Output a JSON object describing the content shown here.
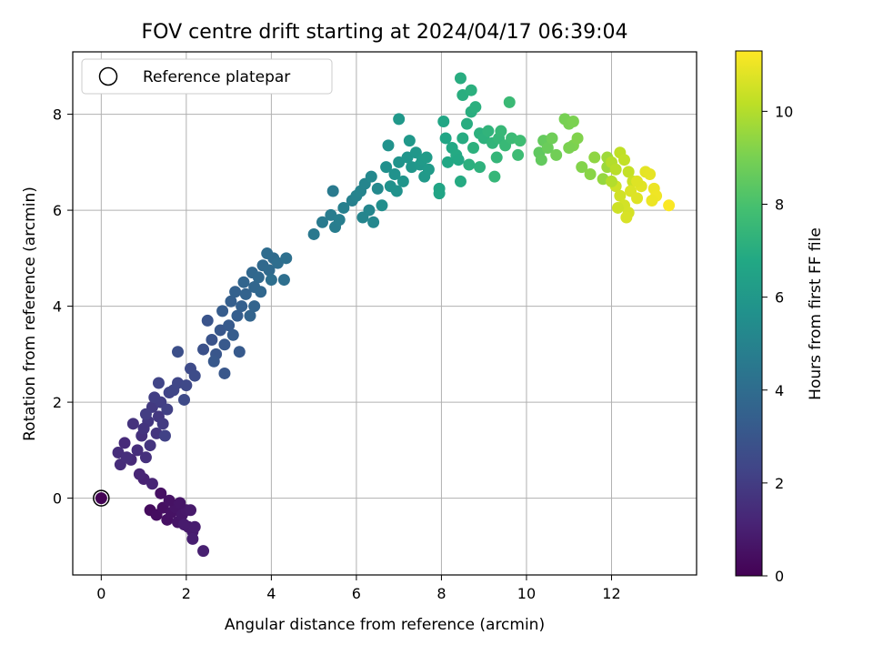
{
  "chart_data": {
    "type": "scatter",
    "title": "FOV centre drift starting at 2024/04/17 06:39:04",
    "xlabel": "Angular distance from reference (arcmin)",
    "ylabel": "Rotation from reference (arcmin)",
    "xlim": [
      -0.67,
      14.0
    ],
    "ylim": [
      -1.6,
      9.3
    ],
    "xticks": [
      0,
      2,
      4,
      6,
      8,
      10,
      12
    ],
    "yticks": [
      0,
      2,
      4,
      6,
      8
    ],
    "xtick_labels": [
      "0",
      "2",
      "4",
      "6",
      "8",
      "10",
      "12"
    ],
    "ytick_labels": [
      "0",
      "2",
      "4",
      "6",
      "8"
    ],
    "grid": true,
    "legend": {
      "position": "top-left",
      "entries": [
        {
          "label": "Reference platepar",
          "marker": "open-circle"
        }
      ]
    },
    "colorbar": {
      "label": "Hours from first FF file",
      "colormap": "viridis",
      "range": [
        0,
        11.3
      ],
      "ticks": [
        0,
        2,
        4,
        6,
        8,
        10
      ],
      "tick_labels": [
        "0",
        "2",
        "4",
        "6",
        "8",
        "10"
      ]
    },
    "reference_point": {
      "x": 0,
      "y": 0
    },
    "series": [
      {
        "color_by": "hours",
        "points": [
          {
            "x": 0.0,
            "y": 0.0,
            "c": 0.05
          },
          {
            "x": 1.15,
            "y": -0.25,
            "c": 0.35
          },
          {
            "x": 1.3,
            "y": -0.35,
            "c": 0.4
          },
          {
            "x": 1.45,
            "y": -0.2,
            "c": 0.45
          },
          {
            "x": 1.55,
            "y": -0.45,
            "c": 0.5
          },
          {
            "x": 1.65,
            "y": -0.3,
            "c": 0.55
          },
          {
            "x": 1.75,
            "y": -0.2,
            "c": 0.6
          },
          {
            "x": 1.8,
            "y": -0.5,
            "c": 0.65
          },
          {
            "x": 1.9,
            "y": -0.35,
            "c": 0.7
          },
          {
            "x": 2.0,
            "y": -0.25,
            "c": 0.75
          },
          {
            "x": 2.05,
            "y": -0.6,
            "c": 0.8
          },
          {
            "x": 2.15,
            "y": -0.7,
            "c": 0.85
          },
          {
            "x": 2.2,
            "y": -0.6,
            "c": 0.9
          },
          {
            "x": 2.15,
            "y": -0.85,
            "c": 0.95
          },
          {
            "x": 2.4,
            "y": -1.1,
            "c": 1.0
          },
          {
            "x": 1.4,
            "y": 0.1,
            "c": 0.5
          },
          {
            "x": 1.6,
            "y": -0.05,
            "c": 0.55
          },
          {
            "x": 1.85,
            "y": -0.1,
            "c": 0.65
          },
          {
            "x": 2.1,
            "y": -0.25,
            "c": 0.8
          },
          {
            "x": 1.95,
            "y": -0.55,
            "c": 0.85
          },
          {
            "x": 1.0,
            "y": 0.4,
            "c": 1.1
          },
          {
            "x": 1.2,
            "y": 0.3,
            "c": 1.15
          },
          {
            "x": 0.9,
            "y": 0.5,
            "c": 1.2
          },
          {
            "x": 0.7,
            "y": 0.8,
            "c": 1.3
          },
          {
            "x": 0.55,
            "y": 1.15,
            "c": 1.35
          },
          {
            "x": 0.45,
            "y": 0.7,
            "c": 1.4
          },
          {
            "x": 0.85,
            "y": 1.0,
            "c": 1.5
          },
          {
            "x": 1.05,
            "y": 0.85,
            "c": 1.55
          },
          {
            "x": 0.95,
            "y": 1.3,
            "c": 1.6
          },
          {
            "x": 0.75,
            "y": 1.55,
            "c": 1.65
          },
          {
            "x": 1.15,
            "y": 1.1,
            "c": 1.7
          },
          {
            "x": 1.3,
            "y": 1.35,
            "c": 1.75
          },
          {
            "x": 1.1,
            "y": 1.6,
            "c": 1.8
          },
          {
            "x": 1.35,
            "y": 1.7,
            "c": 1.85
          },
          {
            "x": 1.2,
            "y": 1.9,
            "c": 1.9
          },
          {
            "x": 1.45,
            "y": 1.55,
            "c": 1.95
          },
          {
            "x": 1.05,
            "y": 1.75,
            "c": 2.0
          },
          {
            "x": 1.4,
            "y": 2.0,
            "c": 2.05
          },
          {
            "x": 1.25,
            "y": 2.1,
            "c": 2.1
          },
          {
            "x": 1.55,
            "y": 1.85,
            "c": 2.15
          },
          {
            "x": 1.5,
            "y": 1.3,
            "c": 2.2
          },
          {
            "x": 1.6,
            "y": 2.2,
            "c": 2.25
          },
          {
            "x": 1.35,
            "y": 2.4,
            "c": 2.3
          },
          {
            "x": 1.7,
            "y": 2.25,
            "c": 2.35
          },
          {
            "x": 1.8,
            "y": 2.4,
            "c": 2.4
          },
          {
            "x": 2.0,
            "y": 2.35,
            "c": 2.45
          },
          {
            "x": 1.95,
            "y": 2.05,
            "c": 2.5
          },
          {
            "x": 2.1,
            "y": 2.7,
            "c": 2.55
          },
          {
            "x": 2.2,
            "y": 2.55,
            "c": 2.6
          },
          {
            "x": 1.8,
            "y": 3.05,
            "c": 2.7
          },
          {
            "x": 0.4,
            "y": 0.95,
            "c": 1.45
          },
          {
            "x": 0.6,
            "y": 0.85,
            "c": 1.5
          },
          {
            "x": 1.0,
            "y": 1.45,
            "c": 1.7
          },
          {
            "x": 2.4,
            "y": 3.1,
            "c": 2.8
          },
          {
            "x": 2.6,
            "y": 3.3,
            "c": 2.9
          },
          {
            "x": 2.5,
            "y": 3.7,
            "c": 2.95
          },
          {
            "x": 2.7,
            "y": 3.0,
            "c": 3.0
          },
          {
            "x": 2.8,
            "y": 3.5,
            "c": 3.05
          },
          {
            "x": 2.65,
            "y": 2.85,
            "c": 3.1
          },
          {
            "x": 2.9,
            "y": 3.2,
            "c": 3.15
          },
          {
            "x": 3.0,
            "y": 3.6,
            "c": 3.2
          },
          {
            "x": 2.85,
            "y": 3.9,
            "c": 3.25
          },
          {
            "x": 3.1,
            "y": 3.4,
            "c": 3.3
          },
          {
            "x": 3.2,
            "y": 3.8,
            "c": 3.35
          },
          {
            "x": 3.05,
            "y": 4.1,
            "c": 3.4
          },
          {
            "x": 3.3,
            "y": 4.0,
            "c": 3.45
          },
          {
            "x": 3.15,
            "y": 4.3,
            "c": 3.5
          },
          {
            "x": 3.4,
            "y": 4.25,
            "c": 3.55
          },
          {
            "x": 3.5,
            "y": 3.8,
            "c": 3.6
          },
          {
            "x": 3.35,
            "y": 4.5,
            "c": 3.65
          },
          {
            "x": 3.6,
            "y": 4.4,
            "c": 3.7
          },
          {
            "x": 3.55,
            "y": 4.7,
            "c": 3.75
          },
          {
            "x": 3.7,
            "y": 4.6,
            "c": 3.8
          },
          {
            "x": 3.8,
            "y": 4.85,
            "c": 3.85
          },
          {
            "x": 3.95,
            "y": 4.75,
            "c": 3.9
          },
          {
            "x": 4.05,
            "y": 5.0,
            "c": 3.95
          },
          {
            "x": 3.9,
            "y": 5.1,
            "c": 4.0
          },
          {
            "x": 4.15,
            "y": 4.9,
            "c": 4.05
          },
          {
            "x": 4.3,
            "y": 4.55,
            "c": 4.1
          },
          {
            "x": 4.35,
            "y": 5.0,
            "c": 4.15
          },
          {
            "x": 4.0,
            "y": 4.55,
            "c": 4.1
          },
          {
            "x": 2.9,
            "y": 2.6,
            "c": 3.05
          },
          {
            "x": 3.25,
            "y": 3.05,
            "c": 3.2
          },
          {
            "x": 3.6,
            "y": 4.0,
            "c": 3.6
          },
          {
            "x": 3.75,
            "y": 4.3,
            "c": 3.75
          },
          {
            "x": 5.0,
            "y": 5.5,
            "c": 4.5
          },
          {
            "x": 5.2,
            "y": 5.75,
            "c": 4.6
          },
          {
            "x": 5.4,
            "y": 5.9,
            "c": 4.7
          },
          {
            "x": 5.5,
            "y": 5.65,
            "c": 4.75
          },
          {
            "x": 5.6,
            "y": 5.8,
            "c": 4.8
          },
          {
            "x": 5.7,
            "y": 6.05,
            "c": 4.85
          },
          {
            "x": 5.9,
            "y": 6.2,
            "c": 4.9
          },
          {
            "x": 5.45,
            "y": 6.4,
            "c": 4.6
          },
          {
            "x": 6.0,
            "y": 6.3,
            "c": 5.0
          },
          {
            "x": 6.1,
            "y": 6.4,
            "c": 5.05
          },
          {
            "x": 6.2,
            "y": 6.55,
            "c": 5.1
          },
          {
            "x": 6.3,
            "y": 6.0,
            "c": 5.15
          },
          {
            "x": 6.4,
            "y": 5.75,
            "c": 5.2
          },
          {
            "x": 6.35,
            "y": 6.7,
            "c": 5.25
          },
          {
            "x": 6.15,
            "y": 5.85,
            "c": 5.1
          },
          {
            "x": 6.5,
            "y": 6.45,
            "c": 5.3
          },
          {
            "x": 6.6,
            "y": 6.1,
            "c": 5.5
          },
          {
            "x": 6.7,
            "y": 6.9,
            "c": 5.6
          },
          {
            "x": 6.8,
            "y": 6.5,
            "c": 5.65
          },
          {
            "x": 6.9,
            "y": 6.75,
            "c": 5.7
          },
          {
            "x": 7.0,
            "y": 7.0,
            "c": 5.75
          },
          {
            "x": 7.1,
            "y": 6.6,
            "c": 5.8
          },
          {
            "x": 7.2,
            "y": 7.1,
            "c": 5.85
          },
          {
            "x": 7.3,
            "y": 6.9,
            "c": 5.9
          },
          {
            "x": 7.4,
            "y": 7.2,
            "c": 5.95
          },
          {
            "x": 7.5,
            "y": 6.95,
            "c": 6.0
          },
          {
            "x": 7.6,
            "y": 6.7,
            "c": 6.05
          },
          {
            "x": 7.7,
            "y": 6.85,
            "c": 6.1
          },
          {
            "x": 7.25,
            "y": 7.45,
            "c": 6.0
          },
          {
            "x": 6.75,
            "y": 7.35,
            "c": 5.7
          },
          {
            "x": 7.0,
            "y": 7.9,
            "c": 6.0
          },
          {
            "x": 7.55,
            "y": 7.05,
            "c": 6.1
          },
          {
            "x": 6.95,
            "y": 6.4,
            "c": 5.7
          },
          {
            "x": 7.65,
            "y": 7.1,
            "c": 6.15
          },
          {
            "x": 7.95,
            "y": 6.45,
            "c": 6.6
          },
          {
            "x": 8.05,
            "y": 7.85,
            "c": 6.7
          },
          {
            "x": 8.15,
            "y": 7.0,
            "c": 6.75
          },
          {
            "x": 8.25,
            "y": 7.3,
            "c": 6.8
          },
          {
            "x": 8.35,
            "y": 7.15,
            "c": 6.85
          },
          {
            "x": 8.45,
            "y": 6.6,
            "c": 6.9
          },
          {
            "x": 8.5,
            "y": 7.5,
            "c": 6.95
          },
          {
            "x": 8.6,
            "y": 7.8,
            "c": 7.0
          },
          {
            "x": 8.7,
            "y": 8.05,
            "c": 7.05
          },
          {
            "x": 8.8,
            "y": 8.15,
            "c": 7.1
          },
          {
            "x": 8.9,
            "y": 7.6,
            "c": 7.15
          },
          {
            "x": 9.0,
            "y": 7.5,
            "c": 7.2
          },
          {
            "x": 8.45,
            "y": 8.75,
            "c": 7.0
          },
          {
            "x": 8.5,
            "y": 8.4,
            "c": 7.05
          },
          {
            "x": 8.7,
            "y": 8.5,
            "c": 7.1
          },
          {
            "x": 8.75,
            "y": 7.3,
            "c": 7.15
          },
          {
            "x": 8.65,
            "y": 6.95,
            "c": 7.1
          },
          {
            "x": 9.1,
            "y": 7.65,
            "c": 7.3
          },
          {
            "x": 9.2,
            "y": 7.4,
            "c": 7.35
          },
          {
            "x": 9.3,
            "y": 7.1,
            "c": 7.4
          },
          {
            "x": 9.35,
            "y": 7.5,
            "c": 7.45
          },
          {
            "x": 9.4,
            "y": 7.65,
            "c": 7.5
          },
          {
            "x": 9.5,
            "y": 7.35,
            "c": 7.55
          },
          {
            "x": 9.6,
            "y": 8.25,
            "c": 7.6
          },
          {
            "x": 9.65,
            "y": 7.5,
            "c": 7.65
          },
          {
            "x": 9.85,
            "y": 7.45,
            "c": 7.75
          },
          {
            "x": 9.8,
            "y": 7.15,
            "c": 7.7
          },
          {
            "x": 9.25,
            "y": 6.7,
            "c": 7.45
          },
          {
            "x": 8.9,
            "y": 6.9,
            "c": 7.2
          },
          {
            "x": 7.95,
            "y": 6.35,
            "c": 6.6
          },
          {
            "x": 8.1,
            "y": 7.5,
            "c": 6.65
          },
          {
            "x": 8.4,
            "y": 7.05,
            "c": 6.8
          },
          {
            "x": 10.3,
            "y": 7.2,
            "c": 8.5
          },
          {
            "x": 10.4,
            "y": 7.45,
            "c": 8.6
          },
          {
            "x": 10.5,
            "y": 7.3,
            "c": 8.7
          },
          {
            "x": 10.6,
            "y": 7.5,
            "c": 8.8
          },
          {
            "x": 10.7,
            "y": 7.15,
            "c": 8.85
          },
          {
            "x": 10.9,
            "y": 7.9,
            "c": 8.95
          },
          {
            "x": 11.0,
            "y": 7.8,
            "c": 9.0
          },
          {
            "x": 11.1,
            "y": 7.85,
            "c": 9.05
          },
          {
            "x": 11.1,
            "y": 7.35,
            "c": 9.1
          },
          {
            "x": 11.2,
            "y": 7.5,
            "c": 9.15
          },
          {
            "x": 11.3,
            "y": 6.9,
            "c": 9.2
          },
          {
            "x": 11.5,
            "y": 6.75,
            "c": 9.3
          },
          {
            "x": 11.6,
            "y": 7.1,
            "c": 9.4
          },
          {
            "x": 11.8,
            "y": 6.65,
            "c": 9.5
          },
          {
            "x": 11.9,
            "y": 6.9,
            "c": 9.6
          },
          {
            "x": 10.35,
            "y": 7.05,
            "c": 8.55
          },
          {
            "x": 11.0,
            "y": 7.3,
            "c": 9.05
          },
          {
            "x": 11.9,
            "y": 7.1,
            "c": 9.65
          },
          {
            "x": 12.0,
            "y": 7.0,
            "c": 10.0
          },
          {
            "x": 12.1,
            "y": 6.85,
            "c": 10.1
          },
          {
            "x": 12.2,
            "y": 7.2,
            "c": 10.2
          },
          {
            "x": 12.3,
            "y": 7.05,
            "c": 10.25
          },
          {
            "x": 12.4,
            "y": 6.8,
            "c": 10.3
          },
          {
            "x": 12.5,
            "y": 6.6,
            "c": 10.4
          },
          {
            "x": 12.1,
            "y": 6.5,
            "c": 10.45
          },
          {
            "x": 12.2,
            "y": 6.3,
            "c": 10.5
          },
          {
            "x": 12.3,
            "y": 6.1,
            "c": 10.55
          },
          {
            "x": 12.4,
            "y": 5.95,
            "c": 10.6
          },
          {
            "x": 12.35,
            "y": 5.85,
            "c": 10.65
          },
          {
            "x": 12.45,
            "y": 6.4,
            "c": 10.7
          },
          {
            "x": 12.6,
            "y": 6.25,
            "c": 10.75
          },
          {
            "x": 12.7,
            "y": 6.5,
            "c": 10.8
          },
          {
            "x": 12.8,
            "y": 6.8,
            "c": 10.85
          },
          {
            "x": 12.9,
            "y": 6.75,
            "c": 10.9
          },
          {
            "x": 13.0,
            "y": 6.45,
            "c": 11.0
          },
          {
            "x": 13.05,
            "y": 6.3,
            "c": 11.05
          },
          {
            "x": 12.95,
            "y": 6.2,
            "c": 11.0
          },
          {
            "x": 13.35,
            "y": 6.1,
            "c": 11.25
          },
          {
            "x": 12.0,
            "y": 6.6,
            "c": 10.0
          },
          {
            "x": 12.15,
            "y": 6.05,
            "c": 10.45
          },
          {
            "x": 12.6,
            "y": 6.6,
            "c": 10.75
          }
        ]
      }
    ]
  }
}
